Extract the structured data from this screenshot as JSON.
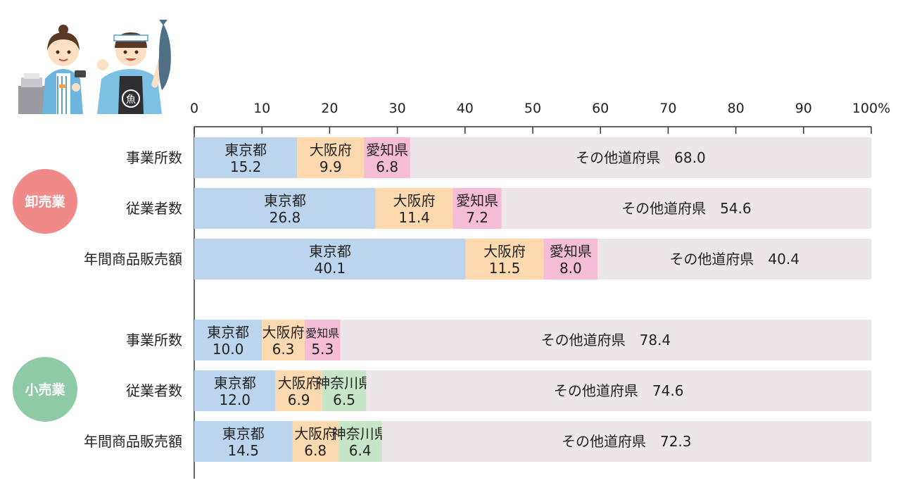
{
  "colors": {
    "tokyo": "#bcd5ee",
    "osaka": "#fcd9ae",
    "aichi": "#f5bcd6",
    "kanagawa": "#c6e6c8",
    "other": "#ece6e8",
    "wholesale_badge": "#ef8a88",
    "retail_badge": "#8fcaa7",
    "axis": "#333333"
  },
  "illustration": {
    "cashier_icon": "cashier-person-icon",
    "fishmonger_icon": "fishmonger-person-icon",
    "apron_text": "魚"
  },
  "chart_data": {
    "type": "bar",
    "orientation": "horizontal",
    "stacked": true,
    "percent": true,
    "xlim": [
      0,
      100
    ],
    "ticks": [
      "0",
      "10",
      "20",
      "30",
      "40",
      "50",
      "60",
      "70",
      "80",
      "90",
      "100%"
    ],
    "groups": [
      {
        "name": "卸売業",
        "color_key": "wholesale_badge",
        "rows": [
          {
            "label": "事業所数",
            "segments": [
              {
                "name": "東京都",
                "value": 15.2,
                "color_key": "tokyo"
              },
              {
                "name": "大阪府",
                "value": 9.9,
                "color_key": "osaka"
              },
              {
                "name": "愛知県",
                "value": 6.8,
                "color_key": "aichi"
              },
              {
                "name": "その他道府県",
                "value": 68.0,
                "display": "68.0",
                "color_key": "other"
              }
            ]
          },
          {
            "label": "従業者数",
            "segments": [
              {
                "name": "東京都",
                "value": 26.8,
                "color_key": "tokyo"
              },
              {
                "name": "大阪府",
                "value": 11.4,
                "color_key": "osaka"
              },
              {
                "name": "愛知県",
                "value": 7.2,
                "color_key": "aichi"
              },
              {
                "name": "その他道府県",
                "value": 54.6,
                "color_key": "other"
              }
            ]
          },
          {
            "label": "年間商品販売額",
            "segments": [
              {
                "name": "東京都",
                "value": 40.1,
                "color_key": "tokyo"
              },
              {
                "name": "大阪府",
                "value": 11.5,
                "color_key": "osaka"
              },
              {
                "name": "愛知県",
                "value": 8.0,
                "display": "8.0",
                "color_key": "aichi"
              },
              {
                "name": "その他道府県",
                "value": 40.4,
                "color_key": "other"
              }
            ]
          }
        ]
      },
      {
        "name": "小売業",
        "color_key": "retail_badge",
        "rows": [
          {
            "label": "事業所数",
            "segments": [
              {
                "name": "東京都",
                "value": 10.0,
                "display": "10.0",
                "color_key": "tokyo"
              },
              {
                "name": "大阪府",
                "value": 6.3,
                "color_key": "osaka"
              },
              {
                "name": "愛知県",
                "value": 5.3,
                "color_key": "aichi"
              },
              {
                "name": "その他道府県",
                "value": 78.4,
                "color_key": "other"
              }
            ]
          },
          {
            "label": "従業者数",
            "segments": [
              {
                "name": "東京都",
                "value": 12.0,
                "display": "12.0",
                "color_key": "tokyo"
              },
              {
                "name": "大阪府",
                "value": 6.9,
                "color_key": "osaka"
              },
              {
                "name": "神奈川県",
                "value": 6.5,
                "color_key": "kanagawa"
              },
              {
                "name": "その他道府県",
                "value": 74.6,
                "color_key": "other"
              }
            ]
          },
          {
            "label": "年間商品販売額",
            "segments": [
              {
                "name": "東京都",
                "value": 14.5,
                "color_key": "tokyo"
              },
              {
                "name": "大阪府",
                "value": 6.8,
                "color_key": "osaka"
              },
              {
                "name": "神奈川県",
                "value": 6.4,
                "color_key": "kanagawa"
              },
              {
                "name": "その他道府県",
                "value": 72.3,
                "color_key": "other"
              }
            ]
          }
        ]
      }
    ]
  }
}
